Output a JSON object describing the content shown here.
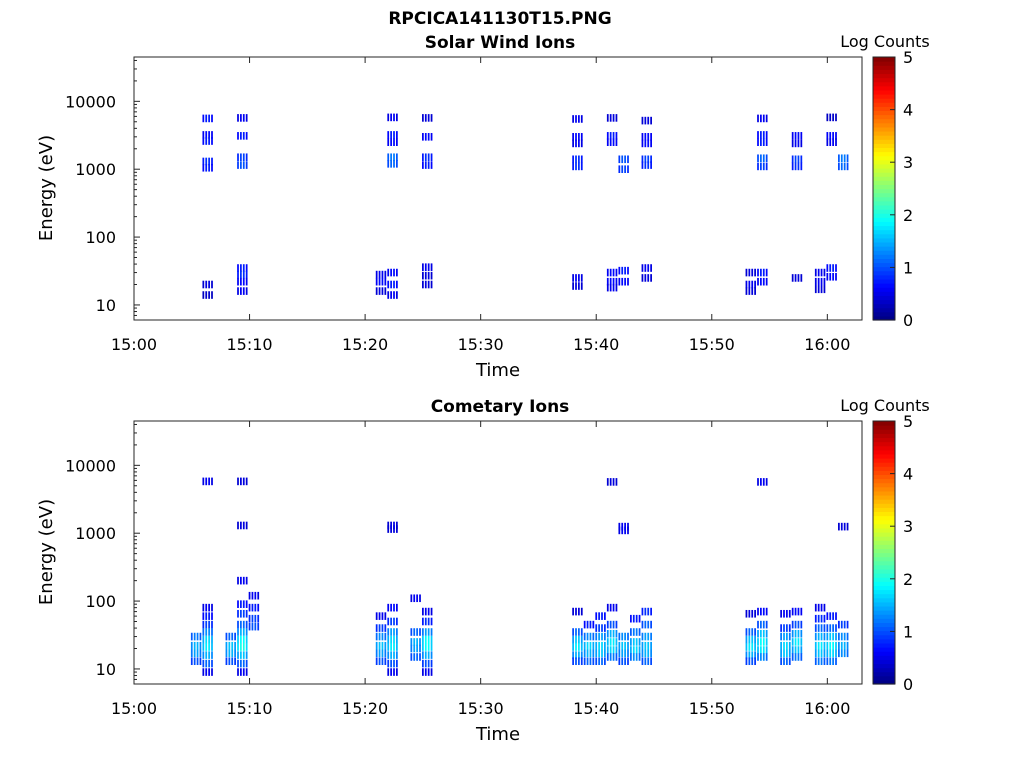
{
  "figure": {
    "title": "RPCICA141130T15.PNG"
  },
  "chart_data": [
    {
      "type": "heatmap",
      "title": "Solar Wind Ions",
      "xlabel": "Time",
      "ylabel": "Energy (eV)",
      "x_ticks": [
        "15:00",
        "15:10",
        "15:20",
        "15:30",
        "15:40",
        "15:50",
        "16:00"
      ],
      "y_ticks": [
        "10",
        "100",
        "1000",
        "10000"
      ],
      "y_scale": "log",
      "ylim": [
        6,
        45000
      ],
      "xlim": [
        "15:00",
        "16:03"
      ],
      "colorbar": {
        "label": "Log Counts",
        "min": 0,
        "max": 5,
        "ticks": [
          "0",
          "1",
          "2",
          "3",
          "4",
          "5"
        ],
        "colormap": "jet"
      },
      "bursts": [
        {
          "t": "15:06",
          "cells": [
            [
              5600,
              0.8
            ],
            [
              3200,
              0.7
            ],
            [
              2600,
              0.8
            ],
            [
              1300,
              0.9
            ],
            [
              1050,
              0.8
            ],
            [
              20,
              0.5
            ],
            [
              14,
              0.4
            ]
          ]
        },
        {
          "t": "15:09",
          "cells": [
            [
              5700,
              0.6
            ],
            [
              3100,
              0.8
            ],
            [
              1500,
              1.0
            ],
            [
              1150,
              1.1
            ],
            [
              35,
              0.8
            ],
            [
              28,
              0.9
            ],
            [
              22,
              0.7
            ],
            [
              16,
              0.6
            ]
          ]
        },
        {
          "t": "15:21",
          "cells": [
            [
              28,
              0.6
            ],
            [
              22,
              0.7
            ],
            [
              16,
              0.5
            ]
          ]
        },
        {
          "t": "15:22",
          "cells": [
            [
              5800,
              0.6
            ],
            [
              3200,
              0.8
            ],
            [
              2500,
              0.7
            ],
            [
              1500,
              1.3
            ],
            [
              1200,
              1.2
            ],
            [
              30,
              0.7
            ],
            [
              20,
              0.8
            ],
            [
              14,
              0.6
            ]
          ]
        },
        {
          "t": "15:25",
          "cells": [
            [
              5700,
              0.5
            ],
            [
              3000,
              0.7
            ],
            [
              1500,
              0.9
            ],
            [
              1150,
              0.8
            ],
            [
              36,
              0.6
            ],
            [
              27,
              0.5
            ],
            [
              20,
              0.5
            ]
          ]
        },
        {
          "t": "15:38",
          "cells": [
            [
              5500,
              0.6
            ],
            [
              3000,
              0.7
            ],
            [
              2400,
              0.6
            ],
            [
              1400,
              0.9
            ],
            [
              1100,
              0.9
            ],
            [
              25,
              0.6
            ],
            [
              19,
              0.5
            ]
          ]
        },
        {
          "t": "15:41",
          "cells": [
            [
              5700,
              0.5
            ],
            [
              3100,
              0.8
            ],
            [
              2500,
              0.7
            ],
            [
              30,
              0.7
            ],
            [
              22,
              0.7
            ],
            [
              18,
              0.6
            ]
          ]
        },
        {
          "t": "15:42",
          "cells": [
            [
              1400,
              1.1
            ],
            [
              1000,
              1.0
            ],
            [
              32,
              0.8
            ],
            [
              22,
              0.7
            ]
          ]
        },
        {
          "t": "15:44",
          "cells": [
            [
              5200,
              0.5
            ],
            [
              3000,
              0.7
            ],
            [
              2400,
              0.7
            ],
            [
              1400,
              1.0
            ],
            [
              1150,
              0.9
            ],
            [
              35,
              0.6
            ],
            [
              25,
              0.5
            ]
          ]
        },
        {
          "t": "15:53",
          "cells": [
            [
              30,
              0.5
            ],
            [
              20,
              0.6
            ],
            [
              16,
              0.5
            ]
          ]
        },
        {
          "t": "15:54",
          "cells": [
            [
              5600,
              0.6
            ],
            [
              3200,
              0.8
            ],
            [
              2500,
              0.8
            ],
            [
              1450,
              1.2
            ],
            [
              1100,
              1.0
            ],
            [
              30,
              0.8
            ],
            [
              22,
              0.7
            ]
          ]
        },
        {
          "t": "15:57",
          "cells": [
            [
              3100,
              0.7
            ],
            [
              2400,
              0.6
            ],
            [
              1400,
              1.0
            ],
            [
              1100,
              0.9
            ],
            [
              25,
              0.5
            ]
          ]
        },
        {
          "t": "15:59",
          "cells": [
            [
              30,
              0.6
            ],
            [
              22,
              0.6
            ],
            [
              17,
              0.5
            ]
          ]
        },
        {
          "t": "16:00",
          "cells": [
            [
              5800,
              0.4
            ],
            [
              3100,
              0.7
            ],
            [
              2500,
              0.6
            ],
            [
              35,
              0.8
            ],
            [
              26,
              0.7
            ]
          ]
        },
        {
          "t": "16:01",
          "cells": [
            [
              1450,
              1.3
            ],
            [
              1100,
              1.2
            ]
          ]
        }
      ]
    },
    {
      "type": "heatmap",
      "title": "Cometary Ions",
      "xlabel": "Time",
      "ylabel": "Energy (eV)",
      "x_ticks": [
        "15:00",
        "15:10",
        "15:20",
        "15:30",
        "15:40",
        "15:50",
        "16:00"
      ],
      "y_ticks": [
        "10",
        "100",
        "1000",
        "10000"
      ],
      "y_scale": "log",
      "ylim": [
        6,
        45000
      ],
      "xlim": [
        "15:00",
        "16:03"
      ],
      "colorbar": {
        "label": "Log Counts",
        "min": 0,
        "max": 5,
        "ticks": [
          "0",
          "1",
          "2",
          "3",
          "4",
          "5"
        ],
        "colormap": "jet"
      },
      "bursts": [
        {
          "t": "15:05",
          "cells": [
            [
              30,
              1.3
            ],
            [
              22,
              1.6
            ],
            [
              17,
              1.5
            ],
            [
              13,
              1.1
            ]
          ]
        },
        {
          "t": "15:06",
          "cells": [
            [
              5800,
              0.6
            ],
            [
              80,
              0.6
            ],
            [
              60,
              0.8
            ],
            [
              45,
              1.0
            ],
            [
              35,
              1.4
            ],
            [
              27,
              1.8
            ],
            [
              21,
              1.9
            ],
            [
              16,
              1.6
            ],
            [
              12,
              1.2
            ],
            [
              9,
              0.6
            ]
          ]
        },
        {
          "t": "15:08",
          "cells": [
            [
              30,
              1.2
            ],
            [
              22,
              1.7
            ],
            [
              17,
              1.6
            ],
            [
              13,
              1.1
            ]
          ]
        },
        {
          "t": "15:09",
          "cells": [
            [
              5800,
              0.5
            ],
            [
              1300,
              0.5
            ],
            [
              200,
              0.6
            ],
            [
              90,
              0.8
            ],
            [
              65,
              1.0
            ],
            [
              45,
              1.2
            ],
            [
              35,
              1.6
            ],
            [
              27,
              2.0
            ],
            [
              21,
              2.1
            ],
            [
              16,
              1.7
            ],
            [
              12,
              1.2
            ],
            [
              9,
              0.6
            ]
          ]
        },
        {
          "t": "15:10",
          "cells": [
            [
              120,
              0.6
            ],
            [
              80,
              0.8
            ],
            [
              55,
              1.0
            ],
            [
              42,
              1.1
            ]
          ]
        },
        {
          "t": "15:21",
          "cells": [
            [
              60,
              0.6
            ],
            [
              40,
              1.0
            ],
            [
              30,
              1.4
            ],
            [
              22,
              1.7
            ],
            [
              17,
              1.5
            ],
            [
              13,
              1.1
            ]
          ]
        },
        {
          "t": "15:22",
          "cells": [
            [
              1300,
              0.5
            ],
            [
              1150,
              0.5
            ],
            [
              80,
              0.7
            ],
            [
              50,
              1.0
            ],
            [
              35,
              1.5
            ],
            [
              27,
              1.8
            ],
            [
              21,
              1.9
            ],
            [
              16,
              1.6
            ],
            [
              12,
              1.1
            ],
            [
              9,
              0.6
            ]
          ]
        },
        {
          "t": "15:24",
          "cells": [
            [
              110,
              0.6
            ],
            [
              35,
              1.2
            ],
            [
              25,
              1.6
            ],
            [
              20,
              1.5
            ],
            [
              15,
              1.2
            ]
          ]
        },
        {
          "t": "15:25",
          "cells": [
            [
              70,
              0.6
            ],
            [
              50,
              0.9
            ],
            [
              35,
              1.5
            ],
            [
              27,
              2.0
            ],
            [
              21,
              2.0
            ],
            [
              16,
              1.6
            ],
            [
              12,
              1.1
            ],
            [
              9,
              0.6
            ]
          ]
        },
        {
          "t": "15:38",
          "cells": [
            [
              70,
              0.5
            ],
            [
              35,
              1.2
            ],
            [
              27,
              1.7
            ],
            [
              21,
              1.9
            ],
            [
              16,
              1.6
            ],
            [
              13,
              1.1
            ]
          ]
        },
        {
          "t": "15:39",
          "cells": [
            [
              45,
              0.8
            ],
            [
              30,
              1.4
            ],
            [
              22,
              1.8
            ],
            [
              17,
              1.6
            ],
            [
              13,
              1.2
            ]
          ]
        },
        {
          "t": "15:40",
          "cells": [
            [
              60,
              0.8
            ],
            [
              40,
              1.0
            ],
            [
              30,
              1.5
            ],
            [
              22,
              1.8
            ],
            [
              17,
              1.7
            ],
            [
              13,
              1.2
            ]
          ]
        },
        {
          "t": "15:41",
          "cells": [
            [
              5700,
              0.5
            ],
            [
              80,
              0.6
            ],
            [
              45,
              1.1
            ],
            [
              33,
              1.6
            ],
            [
              25,
              1.9
            ],
            [
              19,
              1.8
            ],
            [
              15,
              1.3
            ]
          ]
        },
        {
          "t": "15:42",
          "cells": [
            [
              1250,
              0.6
            ],
            [
              1100,
              0.6
            ],
            [
              30,
              1.4
            ],
            [
              22,
              1.7
            ],
            [
              17,
              1.5
            ],
            [
              13,
              1.1
            ]
          ]
        },
        {
          "t": "15:43",
          "cells": [
            [
              55,
              0.8
            ],
            [
              35,
              1.3
            ],
            [
              25,
              1.7
            ],
            [
              19,
              1.8
            ],
            [
              15,
              1.4
            ]
          ]
        },
        {
          "t": "15:44",
          "cells": [
            [
              70,
              0.9
            ],
            [
              45,
              1.2
            ],
            [
              30,
              1.5
            ],
            [
              22,
              1.7
            ],
            [
              17,
              1.6
            ],
            [
              13,
              1.2
            ]
          ]
        },
        {
          "t": "15:53",
          "cells": [
            [
              65,
              0.5
            ],
            [
              35,
              1.2
            ],
            [
              27,
              1.7
            ],
            [
              21,
              1.9
            ],
            [
              16,
              1.6
            ],
            [
              13,
              1.1
            ]
          ]
        },
        {
          "t": "15:54",
          "cells": [
            [
              5700,
              0.6
            ],
            [
              70,
              0.7
            ],
            [
              45,
              1.2
            ],
            [
              33,
              1.7
            ],
            [
              25,
              2.0
            ],
            [
              19,
              1.9
            ],
            [
              15,
              1.4
            ]
          ]
        },
        {
          "t": "15:56",
          "cells": [
            [
              65,
              0.6
            ],
            [
              40,
              1.0
            ],
            [
              30,
              1.5
            ],
            [
              22,
              1.8
            ],
            [
              17,
              1.7
            ],
            [
              13,
              1.2
            ]
          ]
        },
        {
          "t": "15:57",
          "cells": [
            [
              70,
              0.7
            ],
            [
              45,
              1.1
            ],
            [
              33,
              1.6
            ],
            [
              25,
              1.9
            ],
            [
              19,
              1.7
            ],
            [
              15,
              1.3
            ]
          ]
        },
        {
          "t": "15:59",
          "cells": [
            [
              80,
              0.6
            ],
            [
              55,
              0.9
            ],
            [
              40,
              1.2
            ],
            [
              30,
              1.6
            ],
            [
              22,
              1.9
            ],
            [
              17,
              1.7
            ],
            [
              13,
              1.3
            ]
          ]
        },
        {
          "t": "16:00",
          "cells": [
            [
              60,
              0.8
            ],
            [
              40,
              1.2
            ],
            [
              30,
              1.7
            ],
            [
              22,
              2.0
            ],
            [
              17,
              1.8
            ],
            [
              13,
              1.3
            ]
          ]
        },
        {
          "t": "16:01",
          "cells": [
            [
              1250,
              0.5
            ],
            [
              45,
              1.0
            ],
            [
              30,
              1.4
            ],
            [
              22,
              1.6
            ],
            [
              17,
              1.4
            ]
          ]
        }
      ]
    }
  ]
}
